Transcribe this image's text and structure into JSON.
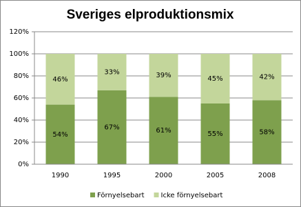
{
  "chart_data": {
    "type": "stacked-bar",
    "title": "Sveriges elproduktionsmix",
    "categories": [
      "1990",
      "1995",
      "2000",
      "2005",
      "2008"
    ],
    "series": [
      {
        "name": "Förnyelsebart",
        "color": "#7ea04d",
        "values": [
          54,
          67,
          61,
          55,
          58
        ],
        "value_labels": [
          "54%",
          "67%",
          "61%",
          "55%",
          "58%"
        ]
      },
      {
        "name": "Icke förnyelsebart",
        "color": "#c3d69b",
        "values": [
          46,
          33,
          39,
          45,
          42
        ],
        "value_labels": [
          "46%",
          "33%",
          "39%",
          "45%",
          "42%"
        ]
      }
    ],
    "ylim": [
      0,
      120
    ],
    "yticks": [
      {
        "value": 0,
        "label": "0%"
      },
      {
        "value": 20,
        "label": "20%"
      },
      {
        "value": 40,
        "label": "40%"
      },
      {
        "value": 60,
        "label": "60%"
      },
      {
        "value": 80,
        "label": "80%"
      },
      {
        "value": 100,
        "label": "100%"
      },
      {
        "value": 120,
        "label": "120%"
      }
    ],
    "grid": true,
    "legend": "bottom"
  }
}
